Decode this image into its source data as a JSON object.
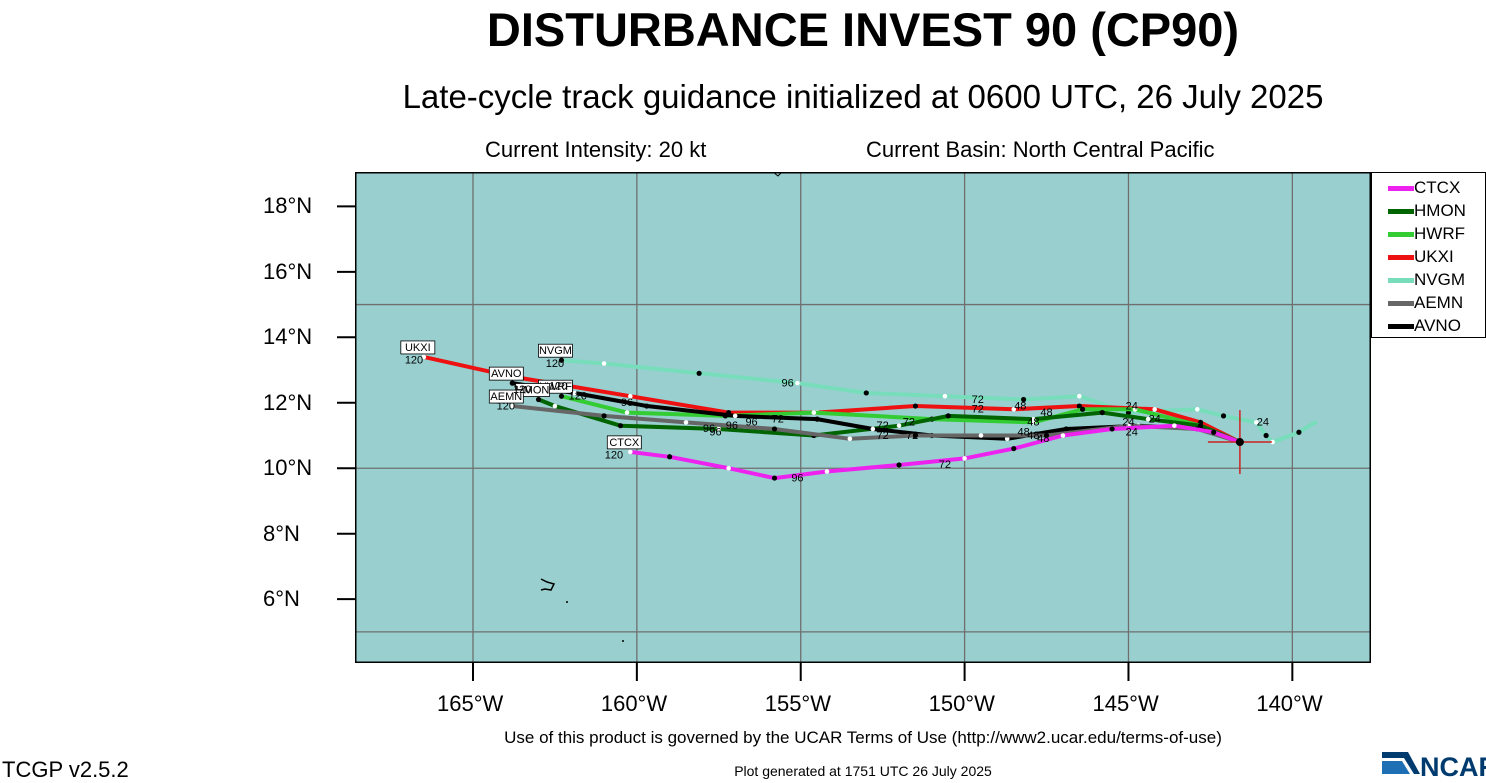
{
  "title": "DISTURBANCE INVEST 90 (CP90)",
  "subtitle": "Late-cycle track guidance initialized at 0600 UTC, 26 July 2025",
  "current_intensity": "Current Intensity: 20 kt",
  "current_basin": "Current Basin: North Central Pacific",
  "y_ticks": [
    "18°N",
    "16°N",
    "14°N",
    "12°N",
    "10°N",
    "8°N",
    "6°N"
  ],
  "x_ticks": [
    "165°W",
    "160°W",
    "155°W",
    "150°W",
    "145°W",
    "140°W"
  ],
  "terms": "Use of this product is governed by the UCAR Terms of Use (http://www2.ucar.edu/terms-of-use)",
  "version": "TCGP v2.5.2",
  "generated": "Plot generated at 1751 UTC   26 July 2025",
  "logo_text": "NCAR",
  "colors": {
    "ocean": "#99CFCF",
    "grid": "#6f6f6f",
    "CTCX": "#ee22ee",
    "HMON": "#006400",
    "HWRF": "#33cc33",
    "UKXI": "#ee1111",
    "NVGM": "#77ddbb",
    "AEMN": "#666666",
    "AVNO": "#000000"
  },
  "legend": [
    "CTCX",
    "HMON",
    "HWRF",
    "UKXI",
    "NVGM",
    "AEMN",
    "AVNO"
  ],
  "map": {
    "lon_range": [
      -168.6,
      -137.6
    ],
    "lat_range": [
      4.05,
      19.05
    ],
    "current_position": {
      "lon": -141.6,
      "lat": 10.8
    },
    "tracks": [
      {
        "model": "NVGM",
        "end_label": "NVGM",
        "points": [
          [
            -139.3,
            11.4
          ],
          [
            -139.8,
            11.1
          ],
          [
            -140.6,
            10.8
          ],
          [
            -140.8,
            11.0
          ],
          [
            -141.1,
            11.4
          ],
          [
            -142.1,
            11.6
          ],
          [
            -142.9,
            11.8
          ],
          [
            -145,
            11.7
          ],
          [
            -146.5,
            12.2
          ],
          [
            -148.2,
            12.1
          ],
          [
            -150.6,
            12.2
          ],
          [
            -153,
            12.3
          ],
          [
            -155.1,
            12.6
          ],
          [
            -158.1,
            12.9
          ],
          [
            -161,
            13.2
          ],
          [
            -162.3,
            13.3
          ]
        ],
        "hour_labels": [
          {
            "text": "96",
            "lon": -155.4,
            "lat": 12.5
          },
          {
            "text": "120",
            "lon": -162.5,
            "lat": 13.1
          }
        ]
      },
      {
        "model": "UKXI",
        "end_label": "UKXI",
        "points": [
          [
            -141.6,
            10.8
          ],
          [
            -142.8,
            11.4
          ],
          [
            -144.2,
            11.8
          ],
          [
            -146.5,
            11.9
          ],
          [
            -148.5,
            11.8
          ],
          [
            -151.5,
            11.9
          ],
          [
            -154.5,
            11.7
          ],
          [
            -157.2,
            11.7
          ],
          [
            -160.2,
            12.2
          ],
          [
            -163.8,
            12.8
          ],
          [
            -166.5,
            13.4
          ]
        ],
        "hour_labels": [
          {
            "text": "120",
            "lon": -166.8,
            "lat": 13.2
          }
        ]
      },
      {
        "model": "HWRF",
        "end_label": "HWRF",
        "points": [
          [
            -141.6,
            10.8
          ],
          [
            -142.8,
            11.3
          ],
          [
            -144.8,
            11.8
          ],
          [
            -146.4,
            11.8
          ],
          [
            -147.9,
            11.4
          ],
          [
            -151,
            11.5
          ],
          [
            -154.6,
            11.7
          ],
          [
            -157.3,
            11.6
          ],
          [
            -160.3,
            11.7
          ],
          [
            -162.3,
            12.2
          ]
        ],
        "hour_labels": []
      },
      {
        "model": "HMON",
        "end_label": "HMON",
        "points": [
          [
            -141.6,
            10.8
          ],
          [
            -142.8,
            11.3
          ],
          [
            -144.4,
            11.5
          ],
          [
            -145.8,
            11.7
          ],
          [
            -147.9,
            11.5
          ],
          [
            -150.5,
            11.6
          ],
          [
            -152,
            11.3
          ],
          [
            -154.6,
            11.0
          ],
          [
            -157.5,
            11.2
          ],
          [
            -160.5,
            11.3
          ],
          [
            -162.5,
            11.9
          ],
          [
            -163,
            12.1
          ]
        ],
        "hour_labels": []
      },
      {
        "model": "AVNO",
        "end_label": "AVNO",
        "points": [
          [
            -141.6,
            10.8
          ],
          [
            -142.8,
            11.2
          ],
          [
            -144.7,
            11.3
          ],
          [
            -146.9,
            11.2
          ],
          [
            -148.7,
            10.9
          ],
          [
            -151,
            11.0
          ],
          [
            -152.8,
            11.2
          ],
          [
            -154.5,
            11.5
          ],
          [
            -157,
            11.6
          ],
          [
            -159.7,
            11.9
          ],
          [
            -161.9,
            12.3
          ],
          [
            -163.8,
            12.6
          ]
        ],
        "hour_labels": [
          {
            "text": "72",
            "lon": -155.7,
            "lat": 11.4
          },
          {
            "text": "96",
            "lon": -160.3,
            "lat": 11.9
          }
        ]
      },
      {
        "model": "AEMN",
        "end_label": "AEMN",
        "points": [
          [
            -141.6,
            10.8
          ],
          [
            -142.9,
            11.2
          ],
          [
            -145,
            11.3
          ],
          [
            -147.5,
            11.0
          ],
          [
            -149.5,
            11.0
          ],
          [
            -151.5,
            11.0
          ],
          [
            -153.5,
            10.9
          ],
          [
            -155.8,
            11.2
          ],
          [
            -158.5,
            11.4
          ],
          [
            -161,
            11.6
          ],
          [
            -163.8,
            11.9
          ]
        ],
        "hour_labels": [
          {
            "text": "96",
            "lon": -157.8,
            "lat": 11.1
          },
          {
            "text": "120",
            "lon": -164,
            "lat": 11.8
          }
        ]
      },
      {
        "model": "CTCX",
        "end_label": "CTCX",
        "points": [
          [
            -141.6,
            10.8
          ],
          [
            -142.4,
            11.1
          ],
          [
            -143.6,
            11.3
          ],
          [
            -145.5,
            11.2
          ],
          [
            -147,
            11.0
          ],
          [
            -148.5,
            10.6
          ],
          [
            -150,
            10.3
          ],
          [
            -152,
            10.1
          ],
          [
            -154.2,
            9.9
          ],
          [
            -155.8,
            9.7
          ],
          [
            -157.2,
            10.0
          ],
          [
            -159,
            10.35
          ],
          [
            -160.2,
            10.5
          ]
        ],
        "hour_labels": [
          {
            "text": "24",
            "lon": -144.9,
            "lat": 11.0
          },
          {
            "text": "72",
            "lon": -150.6,
            "lat": 10.0
          },
          {
            "text": "96",
            "lon": -155.1,
            "lat": 9.6
          },
          {
            "text": "120",
            "lon": -160.7,
            "lat": 10.3
          }
        ]
      }
    ],
    "extra_hour_labels": [
      {
        "text": "24",
        "lon": -140.9,
        "lat": 11.3
      },
      {
        "text": "24",
        "lon": -144.9,
        "lat": 11.8
      },
      {
        "text": "24",
        "lon": -144.2,
        "lat": 11.4
      },
      {
        "text": "24",
        "lon": -145.0,
        "lat": 11.3
      },
      {
        "text": "48",
        "lon": -148.3,
        "lat": 11.8
      },
      {
        "text": "48",
        "lon": -147.5,
        "lat": 11.6
      },
      {
        "text": "48",
        "lon": -147.9,
        "lat": 11.3
      },
      {
        "text": "48",
        "lon": -148.2,
        "lat": 11.0
      },
      {
        "text": "48",
        "lon": -147.6,
        "lat": 10.8
      },
      {
        "text": "48",
        "lon": -147.9,
        "lat": 10.9
      },
      {
        "text": "72",
        "lon": -149.6,
        "lat": 12.0
      },
      {
        "text": "72",
        "lon": -149.6,
        "lat": 11.7
      },
      {
        "text": "72",
        "lon": -151.7,
        "lat": 11.3
      },
      {
        "text": "72",
        "lon": -152.5,
        "lat": 11.2
      },
      {
        "text": "72",
        "lon": -152.5,
        "lat": 10.9
      },
      {
        "text": "72",
        "lon": -151.6,
        "lat": 10.9
      },
      {
        "text": "96",
        "lon": -157.1,
        "lat": 11.2
      },
      {
        "text": "96",
        "lon": -156.5,
        "lat": 11.3
      },
      {
        "text": "96",
        "lon": -157.6,
        "lat": 11.0
      },
      {
        "text": "120",
        "lon": -162.4,
        "lat": 12.4
      },
      {
        "text": "120",
        "lon": -163.5,
        "lat": 12.3
      },
      {
        "text": "120",
        "lon": -161.8,
        "lat": 12.1
      }
    ]
  }
}
